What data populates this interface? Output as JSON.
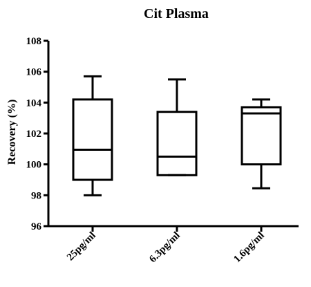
{
  "chart_data": {
    "type": "box",
    "title": "Cit Plasma",
    "xlabel": "",
    "ylabel": "Recovery (%)",
    "ylim": [
      96,
      108
    ],
    "yticks": [
      "96",
      "98",
      "100",
      "102",
      "104",
      "106",
      "108"
    ],
    "categories": [
      "25pg/ml",
      "6.3pg/ml",
      "1.6pg/ml"
    ],
    "boxes": [
      {
        "min": 98.0,
        "q1": 99.0,
        "median": 100.95,
        "q3": 104.2,
        "max": 105.7
      },
      {
        "min": 99.3,
        "q1": 99.3,
        "median": 100.5,
        "q3": 103.4,
        "max": 105.5
      },
      {
        "min": 98.45,
        "q1": 100.0,
        "median": 103.3,
        "q3": 103.7,
        "max": 104.2
      }
    ],
    "grid": false,
    "legend": "none"
  },
  "colors": {
    "stroke": "#000000",
    "background": "#ffffff"
  }
}
